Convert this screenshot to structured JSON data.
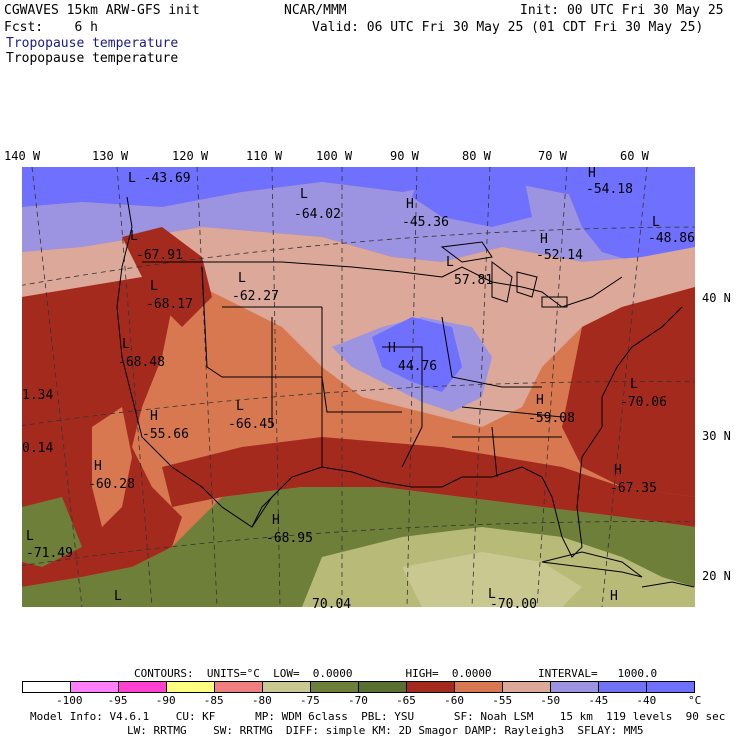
{
  "header": {
    "model_line": "CGWAVES 15km ARW-GFS init",
    "org": "NCAR/MMM",
    "init_line": "Init: 00 UTC Fri 30 May 25",
    "fcst_line": "Fcst:    6 h",
    "valid_line": "Valid: 06 UTC Fri 30 May 25 (01 CDT Fri 30 May 25)",
    "field_title_1": "Tropopause temperature",
    "field_title_2": "Tropopause temperature"
  },
  "map": {
    "longitude_labels": [
      "140 W",
      "130 W",
      "120 W",
      "110 W",
      "100 W",
      "90 W",
      "80 W",
      "70 W",
      "60 W"
    ],
    "latitude_labels": [
      "40 N",
      "30 N",
      "20 N"
    ],
    "extrema": [
      {
        "type": "L",
        "value": "-43.69"
      },
      {
        "type": "L",
        "value": "-64.02"
      },
      {
        "type": "H",
        "value": "-45.36"
      },
      {
        "type": "H",
        "value": "-54.18"
      },
      {
        "type": "H",
        "value": "-52.14"
      },
      {
        "type": "L",
        "value": "-48.86"
      },
      {
        "type": "L",
        "value": "-67.91"
      },
      {
        "type": "L",
        "value": "-68.17"
      },
      {
        "type": "L",
        "value": "-62.27"
      },
      {
        "type": "L",
        "value": "57.81"
      },
      {
        "type": "L",
        "value": "-68.48"
      },
      {
        "type": "H",
        "value": "44.76"
      },
      {
        "type": "",
        "value": "1.34"
      },
      {
        "type": "L",
        "value": "-70.06"
      },
      {
        "type": "H",
        "value": "-55.66"
      },
      {
        "type": "L",
        "value": "-66.45"
      },
      {
        "type": "H",
        "value": "-59.08"
      },
      {
        "type": "",
        "value": "0.14"
      },
      {
        "type": "H",
        "value": "-60.28"
      },
      {
        "type": "H",
        "value": "-67.35"
      },
      {
        "type": "H",
        "value": "-68.95"
      },
      {
        "type": "L",
        "value": "-71.49"
      },
      {
        "type": "L",
        "value": "70.04"
      },
      {
        "type": "L",
        "value": "-70.00"
      },
      {
        "type": "L",
        "value": ""
      },
      {
        "type": "L",
        "value": ""
      },
      {
        "type": "H",
        "value": ""
      }
    ]
  },
  "contours": {
    "line": "CONTOURS:  UNITS=°C  LOW=  0.0000        HIGH=  0.0000       INTERVAL=   1000.0"
  },
  "colorbar": {
    "colors": [
      "#ffffff",
      "#ff80ff",
      "#ff40d0",
      "#ffff80",
      "#f08080",
      "#c8c890",
      "#6e7f3a",
      "#5a7030",
      "#a52a1e",
      "#d87850",
      "#dba89a",
      "#9c94e0",
      "#7272f4",
      "#7070ff"
    ],
    "ticks": [
      "-100",
      "-95",
      "-90",
      "-85",
      "-80",
      "-75",
      "-70",
      "-65",
      "-60",
      "-55",
      "-50",
      "-45",
      "-40",
      "°C"
    ]
  },
  "model_info": {
    "line1": "Model Info: V4.6.1    CU: KF      MP: WDM 6class  PBL: YSU      SF: Noah LSM    15 km  119 levels  90 sec",
    "line2": "LW: RRTMG    SW: RRTMG  DIFF: simple KM: 2D Smagor DAMP: Rayleigh3  SFLAY: MM5"
  },
  "palette": {
    "deep_red": "#a52a1e",
    "orange": "#d87850",
    "pink_tan": "#dba89a",
    "lavender": "#9c94e0",
    "blue": "#7070ff",
    "olive": "#6e7f3a",
    "khaki": "#b8ba78",
    "light_khaki": "#c8c890"
  }
}
